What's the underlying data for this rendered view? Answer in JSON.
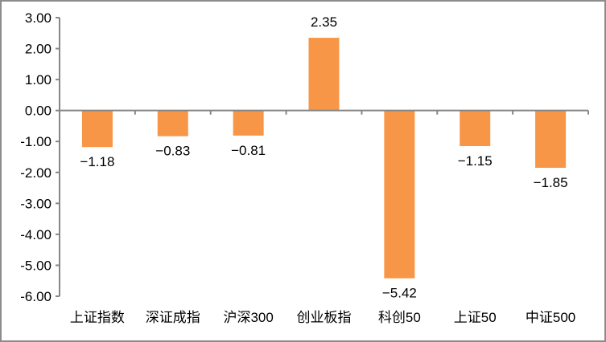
{
  "chart_data": {
    "type": "bar",
    "title": "",
    "xlabel": "",
    "ylabel": "",
    "categories": [
      "上证指数",
      "深证成指",
      "沪深300",
      "创业板指",
      "科创50",
      "上证50",
      "中证500"
    ],
    "values": [
      -1.18,
      -0.83,
      -0.81,
      2.35,
      -5.42,
      -1.15,
      -1.85
    ],
    "value_labels": [
      "-1.18",
      "-0.83",
      "-0.81",
      "2.35",
      "-5.42",
      "-1.15",
      "-1.85"
    ],
    "ylim": [
      -6.0,
      3.0
    ],
    "yticks": [
      3.0,
      2.0,
      1.0,
      0.0,
      -1.0,
      -2.0,
      -3.0,
      -4.0,
      -5.0,
      -6.0
    ],
    "ytick_labels": [
      "3.00",
      "2.00",
      "1.00",
      "0.00",
      "-1.00",
      "-2.00",
      "-3.00",
      "-4.00",
      "-5.00",
      "-6.00"
    ],
    "grid": false,
    "legend": null,
    "bar_color": "#F79646",
    "axis_color": "#868686"
  }
}
